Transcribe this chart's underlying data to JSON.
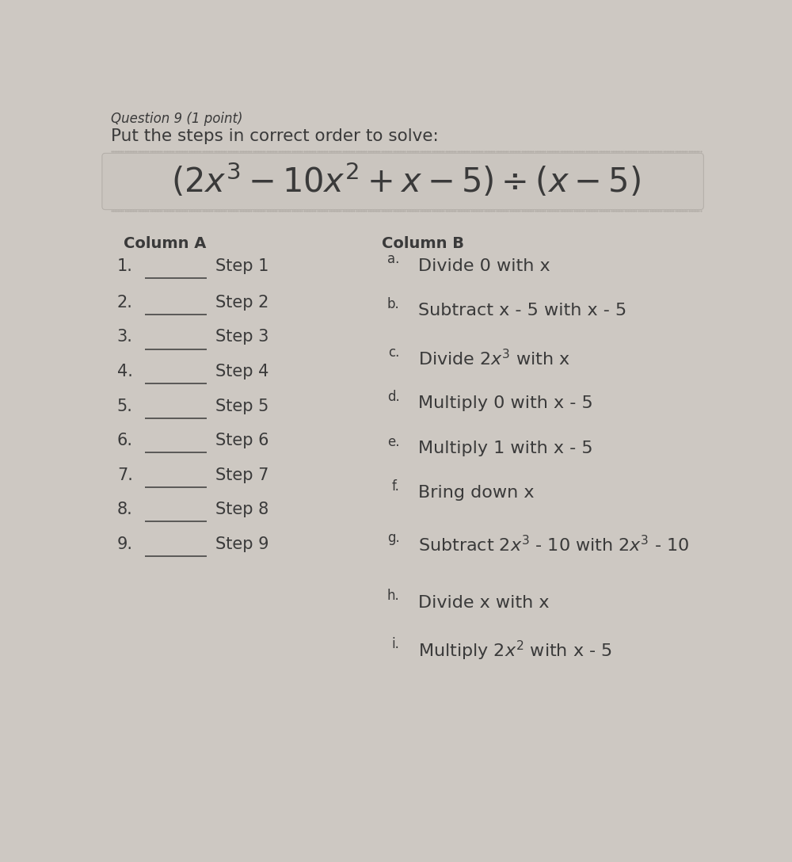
{
  "background_color": "#cdc8c2",
  "title_question": "Question 9 (1 point)",
  "subtitle": "Put the steps in correct order to solve:",
  "col_a_header": "Column A",
  "col_b_header": "Column B",
  "steps_right": [
    [
      "a.",
      "Divide 0 with x"
    ],
    [
      "b.",
      "Subtract x - 5 with x - 5"
    ],
    [
      "c.",
      "Divide $2x^3$ with x"
    ],
    [
      "d.",
      "Multiply 0 with x - 5"
    ],
    [
      "e.",
      "Multiply 1 with x - 5"
    ],
    [
      "f.",
      "Bring down x"
    ],
    [
      "g.",
      "Subtract $2x^3$ - 10 with $2x^3$ - 10"
    ],
    [
      "h.",
      "Divide x with x"
    ],
    [
      "i.",
      "Multiply $2x^2$ with x - 5"
    ]
  ],
  "formula_fontsize": 30,
  "header_fontsize": 14,
  "body_fontsize": 16,
  "question_fontsize": 12,
  "text_color": "#3a3a3a"
}
